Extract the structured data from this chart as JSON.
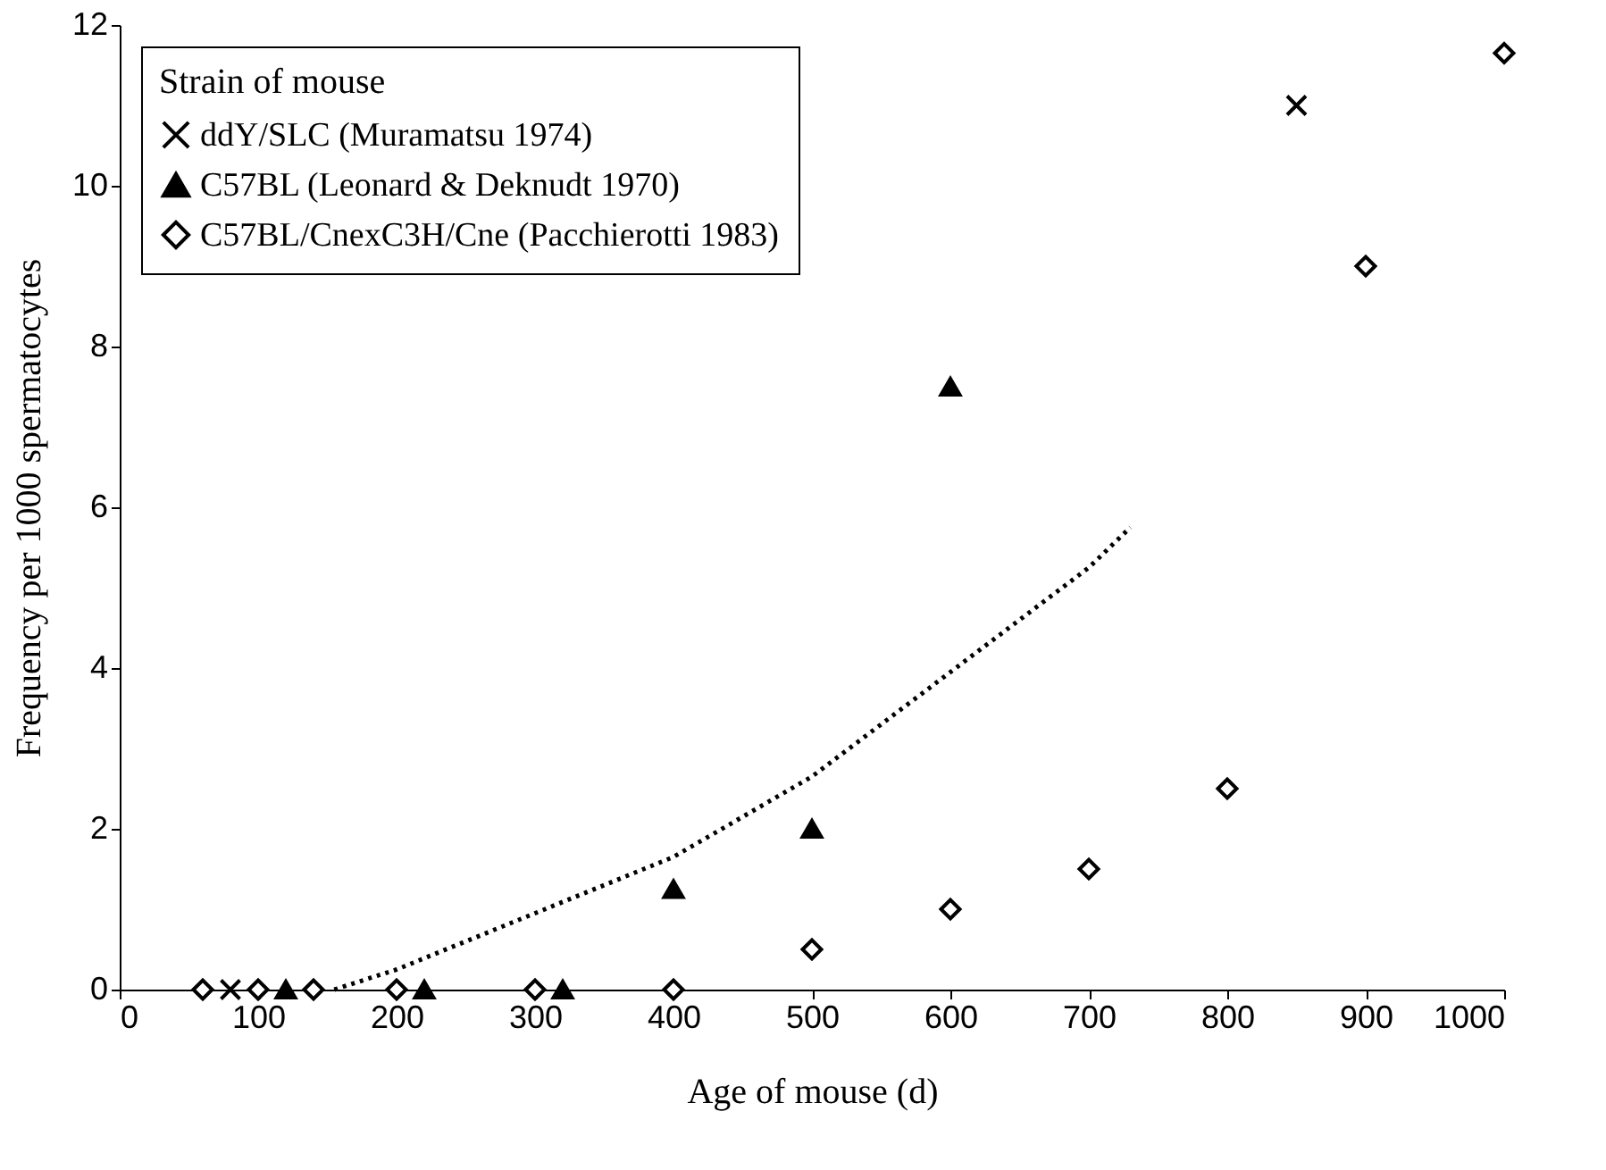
{
  "chart_data": {
    "type": "scatter",
    "xlabel": "Age of mouse (d)",
    "ylabel": "Frequency per 1000 spermatocytes",
    "legend_title": "Strain of mouse",
    "legend": "top left",
    "grid": false,
    "xlim": [
      0,
      1000
    ],
    "xticks": [
      0,
      100,
      200,
      300,
      400,
      500,
      600,
      700,
      800,
      900,
      1000
    ],
    "ylim": [
      0,
      12
    ],
    "yticks": [
      0,
      2,
      4,
      6,
      8,
      10,
      12
    ],
    "series": [
      {
        "name": "ddY/SLC (Muramatsu 1974)",
        "marker": "cross",
        "color": "#000000",
        "x": [
          80,
          850
        ],
        "values": [
          0,
          11
        ]
      },
      {
        "name": "C57BL (Leonard & Deknudt 1970)",
        "marker": "triangle",
        "color": "#000000",
        "x": [
          120,
          220,
          320,
          400,
          500,
          600
        ],
        "values": [
          0,
          0,
          0,
          1.25,
          2,
          7.5
        ]
      },
      {
        "name": "C57BL/CnexC3H/Cne (Pacchierotti 1983)",
        "marker": "diamond",
        "color": "#000000",
        "x": [
          60,
          100,
          140,
          200,
          300,
          400,
          500,
          600,
          700,
          800,
          900,
          1000
        ],
        "values": [
          0,
          0,
          0,
          0,
          0,
          0,
          0.5,
          1,
          1.5,
          2.5,
          9,
          11.65
        ]
      },
      {
        "type": "line",
        "marker": "none",
        "line_style": "dotted",
        "color": "#000000",
        "x": [
          155,
          200,
          300,
          400,
          500,
          600,
          700,
          730
        ],
        "values": [
          0,
          0.25,
          0.95,
          1.65,
          2.65,
          3.95,
          5.25,
          5.75
        ]
      }
    ]
  }
}
